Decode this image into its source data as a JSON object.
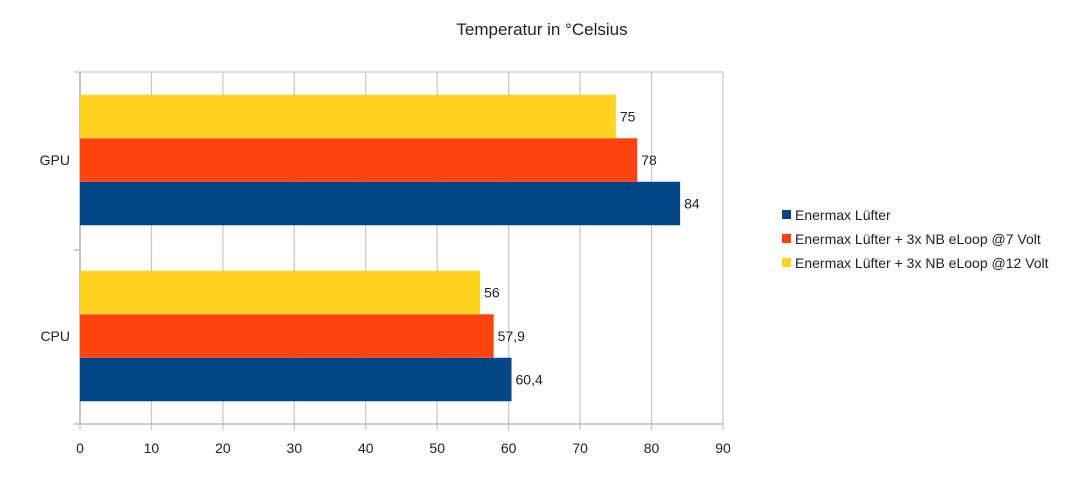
{
  "chart_data": {
    "type": "bar",
    "orientation": "horizontal",
    "title": "Temperatur in °Celsius",
    "categories": [
      "GPU",
      "CPU"
    ],
    "series": [
      {
        "name": "Enermax Lüfter",
        "color": "#004586",
        "values": [
          84,
          60.4
        ],
        "labels": [
          "84",
          "60,4"
        ]
      },
      {
        "name": "Enermax Lüfter + 3x NB eLoop @7 Volt",
        "color": "#ff420e",
        "values": [
          78,
          57.9
        ],
        "labels": [
          "78",
          "57,9"
        ]
      },
      {
        "name": "Enermax Lüfter + 3x NB eLoop @12 Volt",
        "color": "#ffd320",
        "values": [
          75,
          56
        ],
        "labels": [
          "75",
          "56"
        ]
      }
    ],
    "xlim": [
      0,
      90
    ],
    "xticks": [
      "0",
      "10",
      "20",
      "30",
      "40",
      "50",
      "60",
      "70",
      "80",
      "90"
    ],
    "grid": true,
    "legend": "right"
  }
}
